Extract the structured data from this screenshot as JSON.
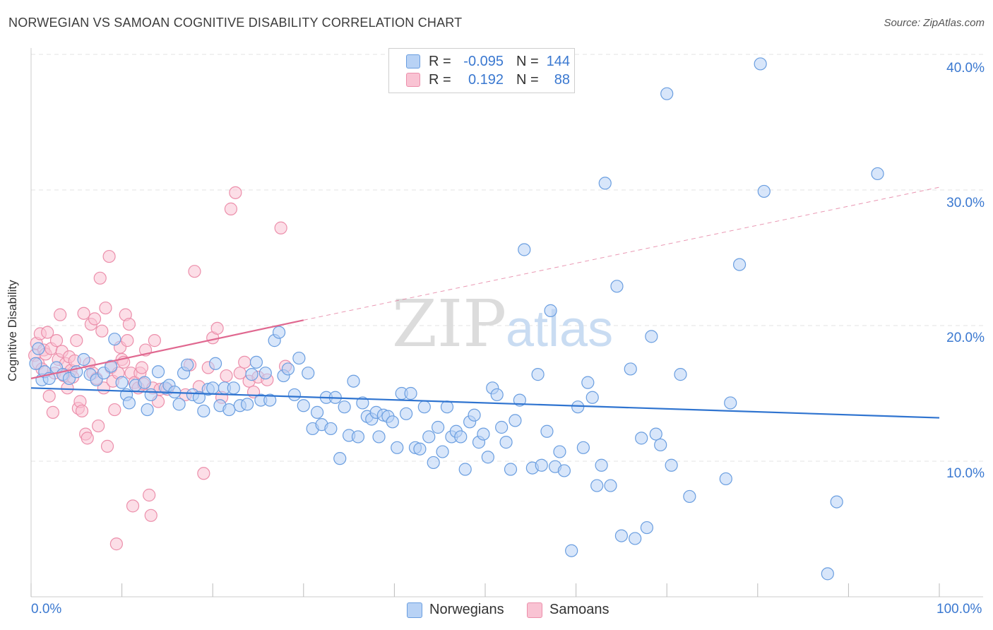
{
  "header": {
    "title": "NORWEGIAN VS SAMOAN COGNITIVE DISABILITY CORRELATION CHART",
    "source": "Source: ZipAtlas.com"
  },
  "watermark": {
    "zip": "ZIP",
    "atlas": "atlas"
  },
  "legend": {
    "rows": [
      {
        "r_label": "R =",
        "r_value": "-0.095",
        "n_label": "N =",
        "n_value": "144"
      },
      {
        "r_label": "R =",
        "r_value": "0.192",
        "n_label": "N =",
        "n_value": "88"
      }
    ]
  },
  "bottom_legend": {
    "norwegians": "Norwegians",
    "samoans": "Samoans"
  },
  "axes": {
    "ylabel": "Cognitive Disability",
    "x_min_label": "0.0%",
    "x_max_label": "100.0%",
    "y_ticks": [
      "10.0%",
      "20.0%",
      "30.0%",
      "40.0%"
    ]
  },
  "colors": {
    "norwegian_fill": "#b8d2f5",
    "norwegian_stroke": "#6a9ee0",
    "norwegian_line": "#2f74d0",
    "samoan_fill": "#f9c3d3",
    "samoan_stroke": "#ec8fab",
    "samoan_line": "#e06890",
    "text_blue": "#3a78d0"
  },
  "chart_data": {
    "type": "scatter",
    "title": "NORWEGIAN VS SAMOAN COGNITIVE DISABILITY CORRELATION CHART",
    "xlabel": "",
    "ylabel": "Cognitive Disability",
    "xlim": [
      0,
      100
    ],
    "ylim": [
      0,
      40
    ],
    "grid": true,
    "legend_position": "top-center",
    "series": [
      {
        "name": "Norwegians",
        "trend": {
          "x0": 0,
          "y0": 15.4,
          "x1": 100,
          "y1": 13.2
        },
        "points": [
          [
            0.5,
            17.2
          ],
          [
            0.8,
            18.3
          ],
          [
            1.2,
            16.0
          ],
          [
            1.5,
            16.6
          ],
          [
            2.0,
            16.1
          ],
          [
            2.8,
            16.9
          ],
          [
            3.5,
            16.4
          ],
          [
            4.2,
            16.1
          ],
          [
            5.0,
            16.6
          ],
          [
            5.8,
            17.5
          ],
          [
            6.5,
            16.4
          ],
          [
            7.2,
            16.0
          ],
          [
            8.0,
            16.5
          ],
          [
            8.8,
            17.0
          ],
          [
            9.2,
            19.0
          ],
          [
            10.0,
            15.8
          ],
          [
            10.5,
            14.9
          ],
          [
            10.8,
            14.3
          ],
          [
            11.5,
            15.6
          ],
          [
            12.5,
            15.8
          ],
          [
            12.8,
            13.8
          ],
          [
            13.2,
            14.9
          ],
          [
            14.0,
            16.6
          ],
          [
            14.8,
            15.4
          ],
          [
            15.2,
            15.6
          ],
          [
            15.8,
            15.1
          ],
          [
            16.3,
            14.2
          ],
          [
            16.8,
            16.5
          ],
          [
            17.2,
            17.1
          ],
          [
            17.8,
            14.9
          ],
          [
            18.5,
            14.7
          ],
          [
            19.0,
            13.7
          ],
          [
            19.5,
            15.3
          ],
          [
            20.0,
            15.4
          ],
          [
            20.3,
            17.2
          ],
          [
            20.8,
            14.1
          ],
          [
            21.3,
            15.4
          ],
          [
            21.8,
            13.8
          ],
          [
            22.3,
            15.4
          ],
          [
            23.0,
            14.1
          ],
          [
            23.8,
            14.2
          ],
          [
            24.3,
            16.4
          ],
          [
            24.8,
            17.3
          ],
          [
            25.3,
            14.5
          ],
          [
            25.8,
            16.5
          ],
          [
            26.3,
            14.5
          ],
          [
            26.8,
            18.9
          ],
          [
            27.3,
            19.5
          ],
          [
            27.8,
            16.3
          ],
          [
            28.3,
            16.8
          ],
          [
            29.0,
            14.9
          ],
          [
            29.5,
            17.6
          ],
          [
            30.0,
            14.1
          ],
          [
            30.5,
            16.5
          ],
          [
            31.0,
            12.4
          ],
          [
            31.5,
            13.6
          ],
          [
            32.0,
            12.7
          ],
          [
            32.5,
            14.7
          ],
          [
            33.0,
            12.4
          ],
          [
            33.5,
            14.7
          ],
          [
            34.0,
            10.2
          ],
          [
            34.5,
            14.0
          ],
          [
            35.0,
            11.9
          ],
          [
            35.5,
            15.9
          ],
          [
            36.0,
            11.8
          ],
          [
            36.5,
            14.3
          ],
          [
            37.0,
            13.3
          ],
          [
            37.5,
            13.1
          ],
          [
            38.0,
            13.6
          ],
          [
            38.3,
            11.8
          ],
          [
            38.8,
            13.4
          ],
          [
            39.3,
            13.3
          ],
          [
            39.8,
            12.9
          ],
          [
            40.3,
            11.0
          ],
          [
            40.8,
            15.0
          ],
          [
            41.3,
            13.5
          ],
          [
            41.8,
            15.0
          ],
          [
            42.3,
            11.0
          ],
          [
            42.8,
            10.9
          ],
          [
            43.3,
            14.0
          ],
          [
            43.8,
            11.8
          ],
          [
            44.3,
            9.9
          ],
          [
            44.8,
            12.5
          ],
          [
            45.3,
            10.7
          ],
          [
            45.8,
            14.0
          ],
          [
            46.3,
            11.8
          ],
          [
            46.8,
            12.2
          ],
          [
            47.3,
            11.8
          ],
          [
            47.8,
            9.4
          ],
          [
            48.3,
            12.9
          ],
          [
            48.8,
            13.4
          ],
          [
            49.3,
            11.4
          ],
          [
            49.8,
            12.0
          ],
          [
            50.3,
            10.3
          ],
          [
            50.8,
            15.4
          ],
          [
            51.3,
            14.9
          ],
          [
            51.8,
            12.5
          ],
          [
            52.3,
            11.4
          ],
          [
            52.8,
            9.4
          ],
          [
            53.3,
            13.0
          ],
          [
            53.8,
            14.5
          ],
          [
            54.3,
            25.6
          ],
          [
            55.2,
            9.5
          ],
          [
            55.8,
            16.4
          ],
          [
            56.2,
            9.7
          ],
          [
            56.8,
            12.2
          ],
          [
            57.2,
            21.1
          ],
          [
            57.7,
            9.6
          ],
          [
            58.2,
            10.7
          ],
          [
            58.7,
            9.3
          ],
          [
            59.5,
            3.4
          ],
          [
            60.2,
            14.0
          ],
          [
            60.8,
            11.0
          ],
          [
            61.3,
            15.8
          ],
          [
            61.8,
            14.7
          ],
          [
            62.3,
            8.2
          ],
          [
            62.8,
            9.7
          ],
          [
            63.2,
            30.5
          ],
          [
            63.8,
            8.2
          ],
          [
            64.5,
            22.9
          ],
          [
            65.0,
            4.5
          ],
          [
            66.0,
            16.8
          ],
          [
            66.5,
            4.3
          ],
          [
            67.2,
            11.7
          ],
          [
            67.8,
            5.1
          ],
          [
            68.3,
            19.2
          ],
          [
            68.8,
            12.0
          ],
          [
            69.3,
            11.2
          ],
          [
            70.0,
            37.1
          ],
          [
            70.5,
            9.7
          ],
          [
            71.5,
            16.4
          ],
          [
            72.5,
            7.4
          ],
          [
            76.5,
            8.7
          ],
          [
            77.0,
            14.3
          ],
          [
            78.0,
            24.5
          ],
          [
            80.3,
            39.3
          ],
          [
            80.7,
            29.9
          ],
          [
            87.7,
            1.7
          ],
          [
            88.7,
            7.0
          ],
          [
            93.2,
            31.2
          ]
        ]
      },
      {
        "name": "Samoans",
        "trend": {
          "x0": 0,
          "y0": 16.1,
          "x1": 30,
          "y1": 20.4,
          "dashed_to_x": 100,
          "dashed_to_y": 30.2
        },
        "points": [
          [
            0.4,
            17.8
          ],
          [
            0.6,
            18.7
          ],
          [
            0.8,
            17.2
          ],
          [
            1.0,
            19.4
          ],
          [
            1.2,
            16.8
          ],
          [
            1.4,
            18.2
          ],
          [
            1.6,
            17.9
          ],
          [
            1.8,
            19.5
          ],
          [
            2.0,
            14.8
          ],
          [
            2.2,
            18.3
          ],
          [
            2.4,
            13.6
          ],
          [
            2.6,
            16.5
          ],
          [
            2.8,
            18.9
          ],
          [
            3.0,
            17.5
          ],
          [
            3.2,
            20.8
          ],
          [
            3.4,
            18.1
          ],
          [
            3.6,
            16.3
          ],
          [
            3.8,
            17.2
          ],
          [
            4.0,
            15.4
          ],
          [
            4.2,
            17.7
          ],
          [
            4.4,
            16.7
          ],
          [
            4.6,
            16.2
          ],
          [
            4.8,
            17.4
          ],
          [
            5.0,
            18.9
          ],
          [
            5.2,
            13.9
          ],
          [
            5.4,
            14.4
          ],
          [
            5.6,
            13.7
          ],
          [
            5.8,
            20.9
          ],
          [
            6.0,
            12.0
          ],
          [
            6.2,
            11.7
          ],
          [
            6.4,
            17.2
          ],
          [
            6.6,
            20.1
          ],
          [
            6.8,
            16.5
          ],
          [
            7.0,
            20.5
          ],
          [
            7.2,
            16.1
          ],
          [
            7.4,
            12.6
          ],
          [
            7.6,
            23.5
          ],
          [
            7.8,
            19.6
          ],
          [
            8.0,
            15.4
          ],
          [
            8.2,
            21.3
          ],
          [
            8.4,
            11.1
          ],
          [
            8.6,
            25.1
          ],
          [
            8.8,
            16.9
          ],
          [
            9.0,
            15.9
          ],
          [
            9.2,
            13.8
          ],
          [
            9.4,
            3.9
          ],
          [
            9.6,
            16.5
          ],
          [
            9.8,
            18.4
          ],
          [
            10.0,
            17.5
          ],
          [
            10.2,
            17.3
          ],
          [
            10.4,
            20.8
          ],
          [
            10.6,
            18.9
          ],
          [
            10.8,
            20.1
          ],
          [
            11.0,
            16.5
          ],
          [
            11.2,
            6.7
          ],
          [
            11.4,
            15.8
          ],
          [
            11.8,
            15.4
          ],
          [
            12.0,
            16.5
          ],
          [
            12.2,
            16.9
          ],
          [
            12.4,
            15.7
          ],
          [
            12.6,
            18.2
          ],
          [
            13.0,
            7.5
          ],
          [
            13.2,
            6.0
          ],
          [
            13.4,
            15.4
          ],
          [
            13.6,
            18.9
          ],
          [
            14.0,
            14.4
          ],
          [
            14.2,
            15.3
          ],
          [
            15.0,
            15.3
          ],
          [
            17.0,
            14.9
          ],
          [
            17.5,
            17.1
          ],
          [
            18.0,
            24.0
          ],
          [
            18.5,
            15.5
          ],
          [
            19.0,
            9.1
          ],
          [
            19.5,
            16.9
          ],
          [
            20.0,
            19.1
          ],
          [
            20.5,
            19.8
          ],
          [
            21.0,
            14.7
          ],
          [
            21.5,
            16.3
          ],
          [
            22.0,
            28.6
          ],
          [
            22.5,
            29.8
          ],
          [
            23.0,
            16.5
          ],
          [
            23.5,
            17.3
          ],
          [
            24.0,
            15.9
          ],
          [
            24.5,
            15.1
          ],
          [
            25.0,
            16.2
          ],
          [
            26.0,
            16.0
          ],
          [
            27.5,
            27.2
          ],
          [
            28.0,
            17.0
          ]
        ]
      }
    ]
  }
}
